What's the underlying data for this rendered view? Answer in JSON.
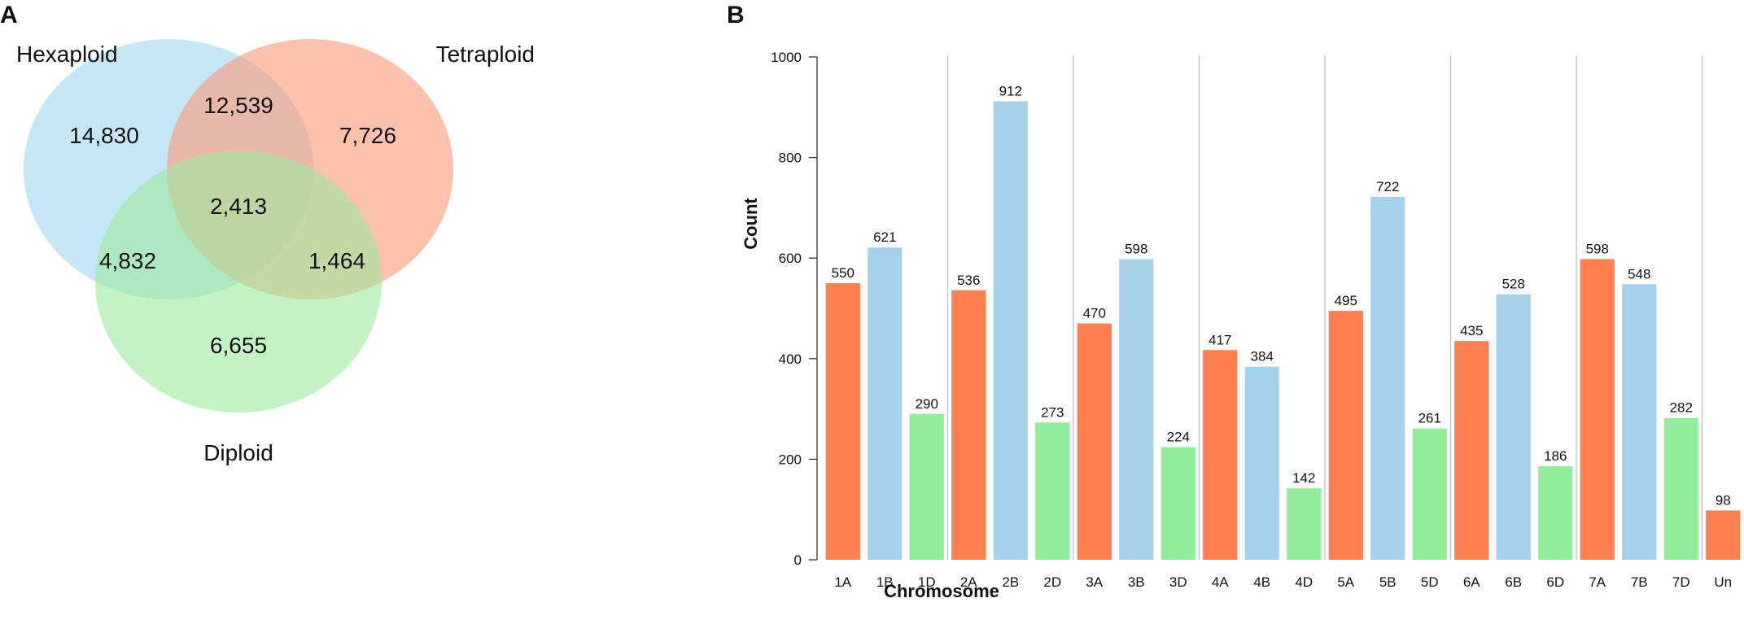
{
  "panels": {
    "a": "A",
    "b": "B"
  },
  "chart_data": [
    {
      "type": "venn",
      "sets": [
        {
          "name": "Hexaploid",
          "color": "#a8d8f0"
        },
        {
          "name": "Tetraploid",
          "color": "#f9a080"
        },
        {
          "name": "Diploid",
          "color": "#9ee99e"
        }
      ],
      "regions": {
        "hexaploid_only": "14,830",
        "tetraploid_only": "7,726",
        "diploid_only": "6,655",
        "hexaploid_tetraploid": "12,539",
        "hexaploid_diploid": "4,832",
        "tetraploid_diploid": "1,464",
        "all": "2,413"
      }
    },
    {
      "type": "bar",
      "title": "",
      "xlabel": "Chromosome",
      "ylabel": "Count",
      "ylim": [
        0,
        1000
      ],
      "yticks": [
        "0",
        "200",
        "400",
        "600",
        "800",
        "1000"
      ],
      "groups": [
        "1",
        "2",
        "3",
        "4",
        "5",
        "6",
        "7",
        "Un"
      ],
      "colors": {
        "A": "#ff7f50",
        "B": "#a6d1eb",
        "D": "#90ee9a",
        "Un": "#ff7f50"
      },
      "categories": [
        "1A",
        "1B",
        "1D",
        "2A",
        "2B",
        "2D",
        "3A",
        "3B",
        "3D",
        "4A",
        "4B",
        "4D",
        "5A",
        "5B",
        "5D",
        "6A",
        "6B",
        "6D",
        "7A",
        "7B",
        "7D",
        "Un"
      ],
      "values": [
        550,
        621,
        290,
        536,
        912,
        273,
        470,
        598,
        224,
        417,
        384,
        142,
        495,
        722,
        261,
        435,
        528,
        186,
        598,
        548,
        282,
        98
      ],
      "bar_labels": [
        "550",
        "621",
        "290",
        "536",
        "912",
        "273",
        "470",
        "598",
        "224",
        "417",
        "384",
        "142",
        "495",
        "722",
        "261",
        "435",
        "528",
        "186",
        "598",
        "548",
        "282",
        "98"
      ]
    }
  ]
}
